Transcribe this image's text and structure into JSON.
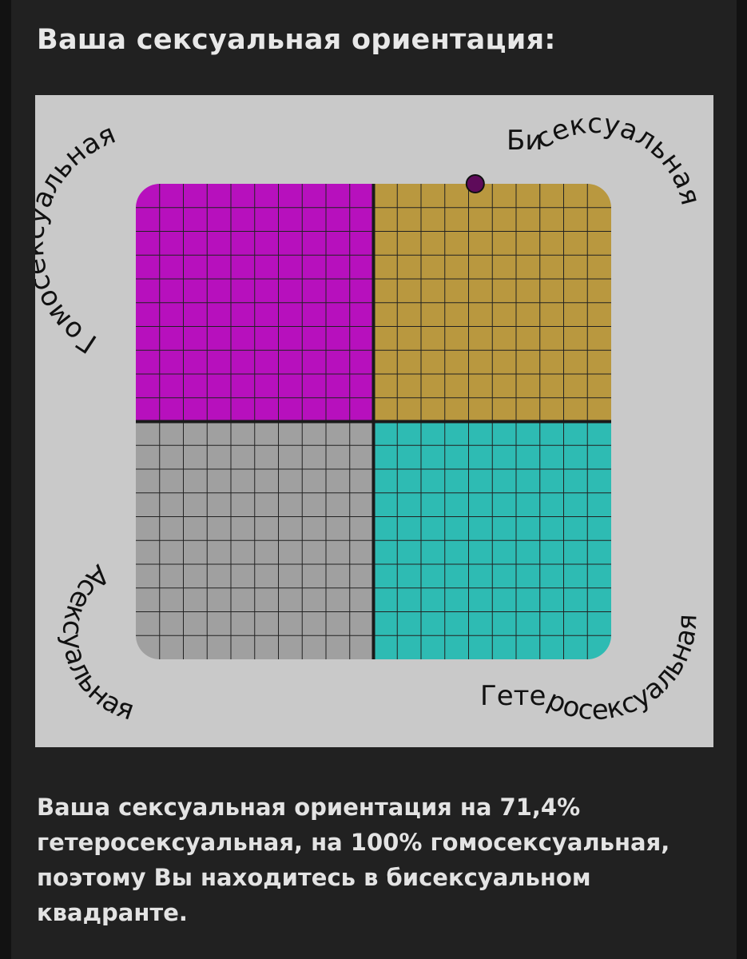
{
  "page": {
    "title": "Ваша сексуальная ориентация:",
    "result_text": "Ваша сексуальная ориентация на 71,4% гетеросексуальная, на 100% гомосексуальная, поэтому Вы находитесь в бисексуальном квадранте."
  },
  "chart_data": {
    "type": "scatter",
    "x_axis": {
      "range": [
        0,
        100
      ],
      "meaning": "гетеросексуальная %"
    },
    "y_axis": {
      "range": [
        0,
        100
      ],
      "meaning": "гомосексуальная %"
    },
    "quadrant_labels": {
      "top_left": "Гомосексуальная",
      "top_right": "Бисексуальная",
      "bottom_left": "Асексуальная",
      "bottom_right": "Гетеросексуальная"
    },
    "quadrant_colors": {
      "top_left": "#b710bd",
      "top_right": "#b9983f",
      "bottom_left": "#a0a0a0",
      "bottom_right": "#2ebbb3"
    },
    "grid_cells_per_quadrant": 10,
    "points": [
      {
        "x": 71.4,
        "y": 100,
        "color": "#5e0b5a"
      }
    ]
  },
  "colors": {
    "background": "#121212",
    "panel": "#212121",
    "chart_background": "#c9c9c9",
    "text": "#e6e6e6"
  }
}
